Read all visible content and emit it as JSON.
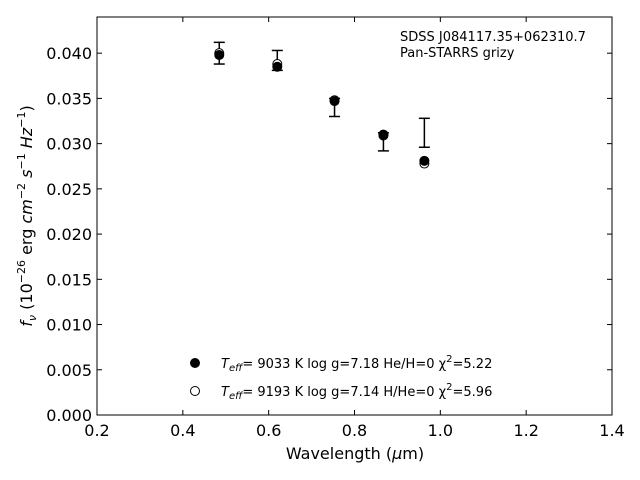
{
  "chart_data": {
    "type": "scatter",
    "title": "",
    "xlabel": "Wavelength (μm)",
    "ylabel": "f_ν (10^-26 erg cm^-2 s^-1 Hz^-1)",
    "xlim": [
      0.2,
      1.4
    ],
    "ylim": [
      0.0,
      0.044
    ],
    "x_ticks": [
      "0.2",
      "0.4",
      "0.6",
      "0.8",
      "1.0",
      "1.2",
      "1.4"
    ],
    "y_ticks": [
      "0.000",
      "0.005",
      "0.010",
      "0.015",
      "0.020",
      "0.025",
      "0.030",
      "0.035",
      "0.040"
    ],
    "grid": false,
    "annotation": {
      "line1": "SDSS J084117.35+062310.7",
      "line2": "Pan-STARRS grizy"
    },
    "observed": {
      "x": [
        0.4849,
        0.6201,
        0.7535,
        0.8674,
        0.9628
      ],
      "y": [
        0.04,
        0.0392,
        0.034,
        0.0302,
        0.0312
      ],
      "yerr": [
        0.0012,
        0.0011,
        0.001,
        0.001,
        0.0016
      ]
    },
    "series": [
      {
        "name": "model-filled",
        "marker": "filled-circle",
        "x": [
          0.4849,
          0.6201,
          0.7535,
          0.8674,
          0.9628
        ],
        "y": [
          0.0398,
          0.0385,
          0.0347,
          0.031,
          0.0281
        ],
        "legend": {
          "teff_label": "T",
          "teff_sub": "eff",
          "text": "=  9033 K  log g=7.18  He/H=0  χ",
          "chi_text": "=5.22"
        }
      },
      {
        "name": "model-open",
        "marker": "open-circle",
        "x": [
          0.4849,
          0.6201,
          0.7535,
          0.8674,
          0.9628
        ],
        "y": [
          0.04,
          0.0388,
          0.0348,
          0.0309,
          0.0278
        ],
        "legend": {
          "teff_label": "T",
          "teff_sub": "eff",
          "text": "=  9193 K  log g=7.14  H/He=0  χ",
          "chi_text": "=5.96"
        }
      }
    ]
  }
}
